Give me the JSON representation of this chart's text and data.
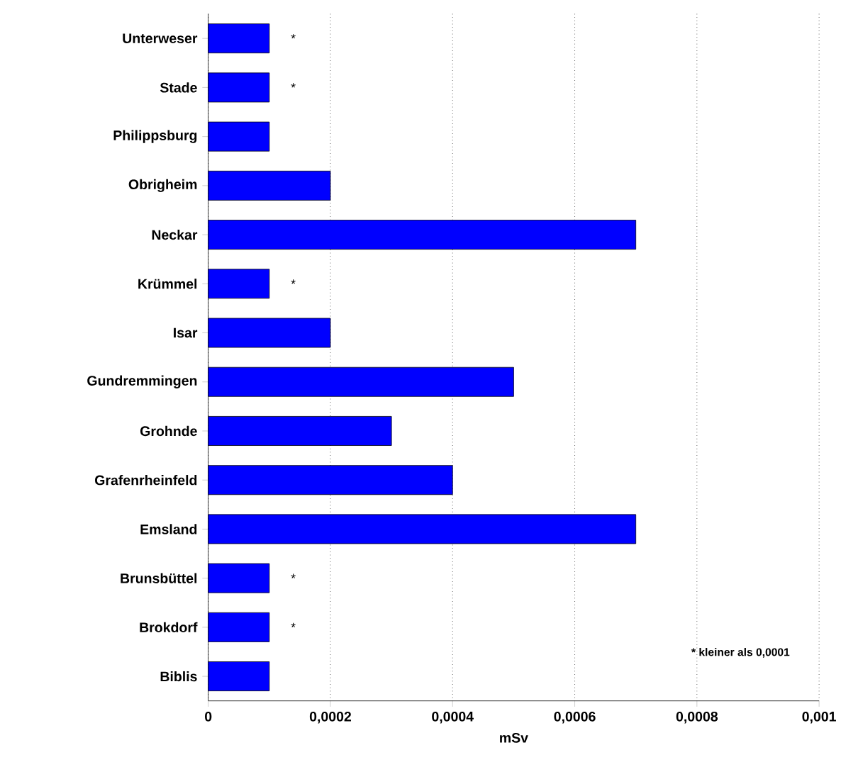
{
  "chart_data": {
    "type": "bar",
    "orientation": "horizontal",
    "xlabel": "mSv",
    "categories": [
      "Unterweser",
      "Stade",
      "Philippsburg",
      "Obrigheim",
      "Neckar",
      "Krümmel",
      "Isar",
      "Gundremmingen",
      "Grohnde",
      "Grafenrheinfeld",
      "Emsland",
      "Brunsbüttel",
      "Brokdorf",
      "Biblis"
    ],
    "values": [
      0.0001,
      0.0001,
      0.0001,
      0.0002,
      0.0007,
      0.0001,
      0.0002,
      0.0005,
      0.0003,
      0.0004,
      0.0007,
      0.0001,
      0.0001,
      0.0001
    ],
    "color": "#0000ff",
    "xlim": [
      0,
      0.001
    ],
    "xticks": [
      0,
      {
        "value": 0.0002,
        "label": "0,0002"
      },
      {
        "value": 0.0004,
        "label": "0,0004"
      },
      {
        "value": 0.0006,
        "label": "0,0006"
      },
      {
        "value": 0.0008,
        "label": "0,0008"
      },
      {
        "value": 0.001,
        "label": "0,001"
      }
    ],
    "grid": "x",
    "value_labels": [
      "*",
      "*",
      null,
      null,
      null,
      "*",
      null,
      null,
      null,
      null,
      null,
      "*",
      "*",
      null
    ],
    "annotations": [
      "* kleiner als 0,0001"
    ]
  }
}
